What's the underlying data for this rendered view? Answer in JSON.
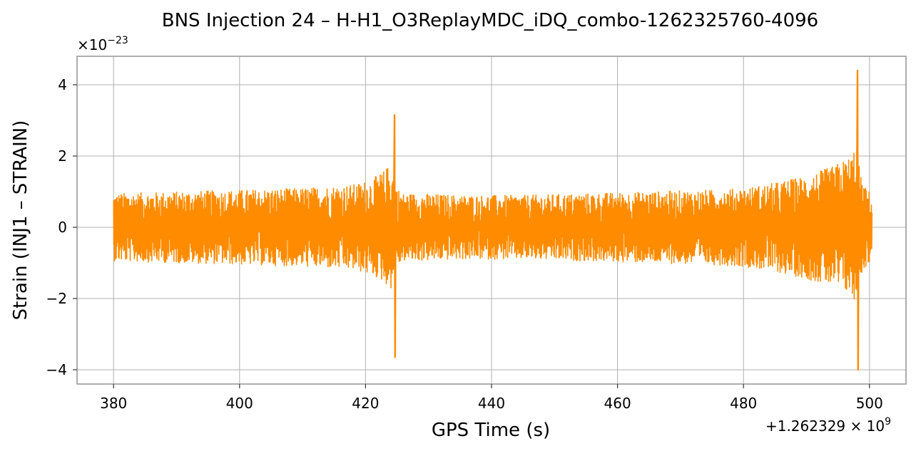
{
  "chart_data": {
    "type": "line",
    "title": "BNS Injection 24 – H-H1_O3ReplayMDC_iDQ_combo-1262325760-4096",
    "xlabel": "GPS Time (s)",
    "ylabel": "Strain (INJ1 – STRAIN)",
    "x_offset_label": "+1.262329 × 10",
    "x_offset_exponent": "9",
    "y_scale_label": "×10",
    "y_scale_exponent": "−23",
    "xlim": [
      374.2,
      505.8
    ],
    "ylim": [
      -4.4,
      4.8
    ],
    "x_ticks": [
      {
        "value": 380,
        "label": "380"
      },
      {
        "value": 400,
        "label": "400"
      },
      {
        "value": 420,
        "label": "420"
      },
      {
        "value": 440,
        "label": "440"
      },
      {
        "value": 460,
        "label": "460"
      },
      {
        "value": 480,
        "label": "480"
      },
      {
        "value": 500,
        "label": "500"
      }
    ],
    "y_ticks": [
      {
        "value": -4,
        "label": "−4"
      },
      {
        "value": -2,
        "label": "−2"
      },
      {
        "value": 0,
        "label": "0"
      },
      {
        "value": 2,
        "label": "2"
      },
      {
        "value": 4,
        "label": "4"
      }
    ],
    "grid": true,
    "series": [
      {
        "color": "#ff8c00",
        "x_start": 380,
        "x_end": 500.4,
        "envelope": {
          "x": [
            380,
            390,
            400,
            410,
            418,
            421,
            423,
            424,
            425,
            426,
            428,
            435,
            445,
            455,
            465,
            475,
            480,
            485,
            490,
            494,
            496,
            497,
            497.5,
            498,
            498.5,
            499,
            500,
            500.4
          ],
          "upper": [
            0.95,
            1.0,
            1.05,
            1.1,
            1.2,
            1.35,
            1.6,
            1.8,
            1.1,
            0.95,
            0.95,
            0.9,
            0.9,
            0.95,
            1.0,
            1.05,
            1.1,
            1.25,
            1.45,
            1.7,
            1.9,
            2.0,
            2.2,
            2.4,
            1.5,
            1.2,
            1.0,
            0.7
          ],
          "lower": [
            -0.95,
            -1.0,
            -1.05,
            -1.1,
            -1.2,
            -1.35,
            -1.55,
            -1.75,
            -1.1,
            -0.95,
            -0.95,
            -0.9,
            -0.9,
            -0.95,
            -1.0,
            -1.05,
            -1.1,
            -1.25,
            -1.45,
            -1.65,
            -1.8,
            -1.9,
            -2.1,
            -2.3,
            -1.5,
            -1.2,
            -1.0,
            -0.7
          ]
        },
        "spikes": [
          {
            "x": 424.6,
            "max": 3.15,
            "min": -3.65
          },
          {
            "x": 498.1,
            "max": 4.4,
            "min": -4.0
          }
        ]
      }
    ]
  }
}
